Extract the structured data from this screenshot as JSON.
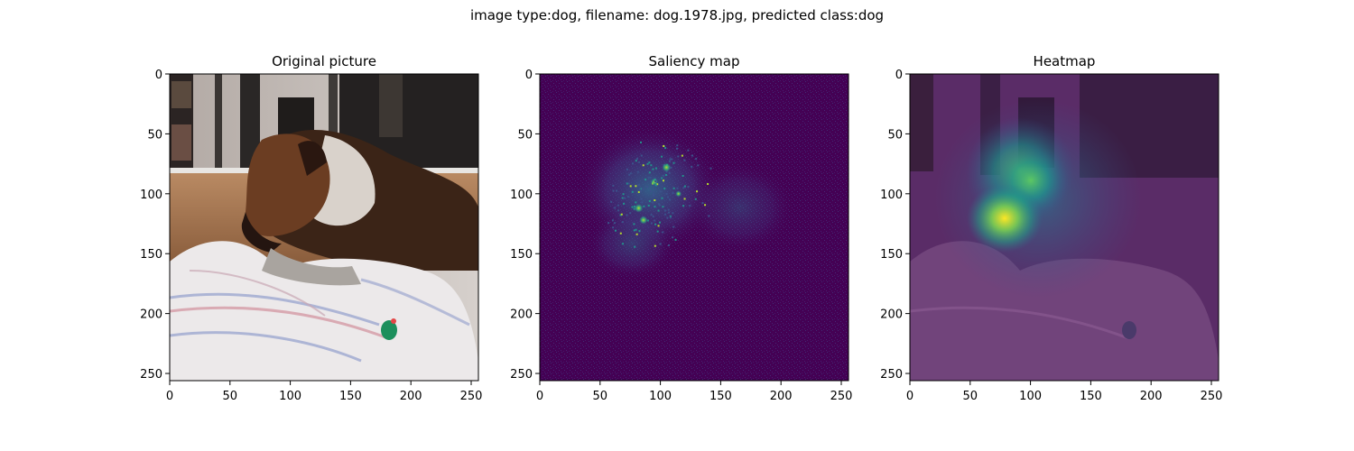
{
  "figure": {
    "suptitle": "image type:dog, filename: dog.1978.jpg, predicted class:dog"
  },
  "chart_data": [
    {
      "type": "heatmap",
      "title": "Original picture",
      "content": "photo",
      "xlim": [
        0,
        256
      ],
      "ylim": [
        256,
        0
      ],
      "xticks": [
        0,
        50,
        100,
        150,
        200,
        250
      ],
      "yticks": [
        0,
        50,
        100,
        150,
        200,
        250
      ],
      "tick_labels": [
        "0",
        "50",
        "100",
        "150",
        "200",
        "250"
      ]
    },
    {
      "type": "heatmap",
      "title": "Saliency map",
      "content": "saliency",
      "colormap": "viridis",
      "xlim": [
        0,
        256
      ],
      "ylim": [
        256,
        0
      ],
      "xticks": [
        0,
        50,
        100,
        150,
        200,
        250
      ],
      "yticks": [
        0,
        50,
        100,
        150,
        200,
        250
      ],
      "tick_labels": [
        "0",
        "50",
        "100",
        "150",
        "200",
        "250"
      ],
      "hotspots": [
        {
          "x": 105,
          "y": 78,
          "intensity": 1.0
        },
        {
          "x": 82,
          "y": 112,
          "intensity": 0.95
        },
        {
          "x": 86,
          "y": 122,
          "intensity": 0.9
        },
        {
          "x": 95,
          "y": 90,
          "intensity": 0.7
        },
        {
          "x": 115,
          "y": 100,
          "intensity": 0.6
        }
      ]
    },
    {
      "type": "heatmap",
      "title": "Heatmap",
      "content": "overlay",
      "colormap": "viridis",
      "xlim": [
        0,
        256
      ],
      "ylim": [
        256,
        0
      ],
      "xticks": [
        0,
        50,
        100,
        150,
        200,
        250
      ],
      "yticks": [
        0,
        50,
        100,
        150,
        200,
        250
      ],
      "tick_labels": [
        "0",
        "50",
        "100",
        "150",
        "200",
        "250"
      ],
      "hotspots": [
        {
          "x": 80,
          "y": 120,
          "intensity": 1.0
        },
        {
          "x": 100,
          "y": 88,
          "intensity": 0.75
        },
        {
          "x": 90,
          "y": 70,
          "intensity": 0.55
        }
      ]
    }
  ],
  "colors": {
    "viridis_low": "#440154",
    "viridis_mid": "#21918c",
    "viridis_high": "#fde725",
    "axis": "#000000"
  }
}
